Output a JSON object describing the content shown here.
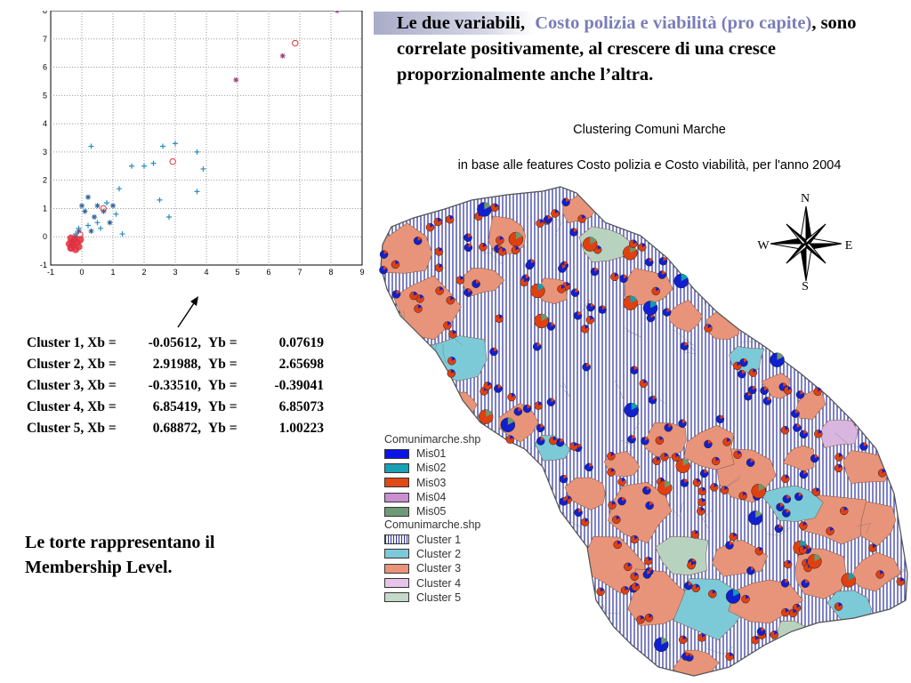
{
  "chart_data": {
    "type": "scatter",
    "x_ticks": [
      "-1",
      "0",
      "1",
      "2",
      "3",
      "4",
      "5",
      "6",
      "7",
      "8",
      "9"
    ],
    "y_ticks": [
      "-1",
      "0",
      "1",
      "2",
      "3",
      "4",
      "5",
      "6",
      "7",
      "8"
    ],
    "xlim": [
      -1,
      9
    ],
    "ylim": [
      -1,
      8
    ],
    "grid": "dotted",
    "series": [
      {
        "color": "#2a8fc0",
        "marker": "plus",
        "points": [
          [
            0.3,
            3.2
          ],
          [
            1.6,
            2.5
          ],
          [
            2.0,
            2.5
          ],
          [
            2.3,
            2.6
          ],
          [
            2.6,
            3.2
          ],
          [
            3.0,
            3.3
          ],
          [
            3.7,
            3.0
          ],
          [
            3.9,
            2.4
          ],
          [
            2.5,
            1.3
          ],
          [
            2.8,
            0.7
          ],
          [
            3.7,
            1.6
          ],
          [
            1.2,
            1.7
          ],
          [
            0.6,
            0.3
          ],
          [
            0.8,
            1.2
          ],
          [
            1.1,
            0.8
          ],
          [
            1.3,
            0.1
          ],
          [
            0.5,
            0.5
          ],
          [
            0.2,
            0.4
          ],
          [
            -0.1,
            0.3
          ],
          [
            -0.2,
            0.1
          ]
        ]
      },
      {
        "color": "#336699",
        "marker": "star",
        "points": [
          [
            0.0,
            1.1
          ],
          [
            0.2,
            1.4
          ],
          [
            0.5,
            1.1
          ],
          [
            0.7,
            0.9
          ],
          [
            1.0,
            1.1
          ],
          [
            0.4,
            0.7
          ],
          [
            0.1,
            0.9
          ],
          [
            0.9,
            0.5
          ],
          [
            -0.2,
            0.0
          ],
          [
            -0.1,
            0.2
          ],
          [
            0.3,
            0.2
          ]
        ]
      },
      {
        "color": "#a0407a",
        "marker": "star",
        "points": [
          [
            4.95,
            5.55
          ],
          [
            6.45,
            6.4
          ],
          [
            8.2,
            8.0
          ]
        ]
      },
      {
        "color": "#e03040",
        "marker": "dot",
        "points": [
          [
            -0.35,
            -0.4
          ],
          [
            -0.3,
            -0.3
          ],
          [
            -0.2,
            -0.45
          ],
          [
            -0.3,
            -0.2
          ],
          [
            -0.1,
            -0.35
          ],
          [
            -0.25,
            -0.1
          ],
          [
            -0.4,
            -0.25
          ],
          [
            -0.15,
            -0.2
          ],
          [
            -0.05,
            -0.1
          ],
          [
            -0.35,
            -0.05
          ]
        ]
      },
      {
        "color": "#e03040",
        "marker": "circle",
        "points": [
          [
            -0.06,
            0.08
          ],
          [
            2.92,
            2.66
          ],
          [
            -0.34,
            -0.39
          ],
          [
            6.85,
            6.85
          ],
          [
            0.69,
            1.0
          ]
        ]
      }
    ]
  },
  "clusters": [
    {
      "name": "Cluster 1, Xb =",
      "xb": "-0.05612,",
      "yb_label": "Yb =",
      "yb": "0.07619"
    },
    {
      "name": "Cluster 2, Xb =",
      "xb": "2.91988,",
      "yb_label": "Yb =",
      "yb": "2.65698"
    },
    {
      "name": "Cluster 3, Xb =",
      "xb": "-0.33510,",
      "yb_label": "Yb =",
      "yb": "-0.39041"
    },
    {
      "name": "Cluster 4, Xb =",
      "xb": "6.85419,",
      "yb_label": "Yb =",
      "yb": "6.85073"
    },
    {
      "name": "Cluster 5, Xb =",
      "xb": "0.68872,",
      "yb_label": "Yb =",
      "yb": "1.00223"
    }
  ],
  "caption": "Le torte rappresentano il Membership Level.",
  "headline": {
    "part1": "Le due variabili, ",
    "accent": "Costo polizia e viabilità (pro capite)",
    "part2": ", sono correlate positivamente, al crescere di una cresce proporzionalmente anche l’altra."
  },
  "map": {
    "title": "Clustering Comuni Marche",
    "subtitle": "in base alle features Costo polizia e Costo viabilità, per l'anno 2004",
    "compass": {
      "n": "N",
      "s": "S",
      "e": "E",
      "w": "W"
    },
    "region_colors": [
      "#e8947a",
      "#7ccad8",
      "#b7d3c0",
      "#d9b6e0",
      "#e8947a",
      "#e8947a"
    ],
    "pie_colors": {
      "mis01": "#1020d0",
      "mis02": "#10a0b0",
      "mis03": "#e04010",
      "mis04": "#c07cc0",
      "mis05": "#709870"
    }
  },
  "legend": {
    "header1": "Comunimarche.shp",
    "mis": [
      {
        "label": "Mis01",
        "color": "#0a14e6"
      },
      {
        "label": "Mis02",
        "color": "#1aa0b4"
      },
      {
        "label": "Mis03",
        "color": "#e04a14"
      },
      {
        "label": "Mis04",
        "color": "#c98fd0"
      },
      {
        "label": "Mis05",
        "color": "#6f9a78"
      }
    ],
    "header2": "Comunimarche.shp",
    "clusters": [
      {
        "label": "Cluster 1",
        "color": "#2a2f9e"
      },
      {
        "label": "Cluster 2",
        "color": "#7ccad8"
      },
      {
        "label": "Cluster 3",
        "color": "#e8947a"
      },
      {
        "label": "Cluster 4",
        "color": "#e7c4ea"
      },
      {
        "label": "Cluster 5",
        "color": "#c4d9c9"
      }
    ]
  }
}
